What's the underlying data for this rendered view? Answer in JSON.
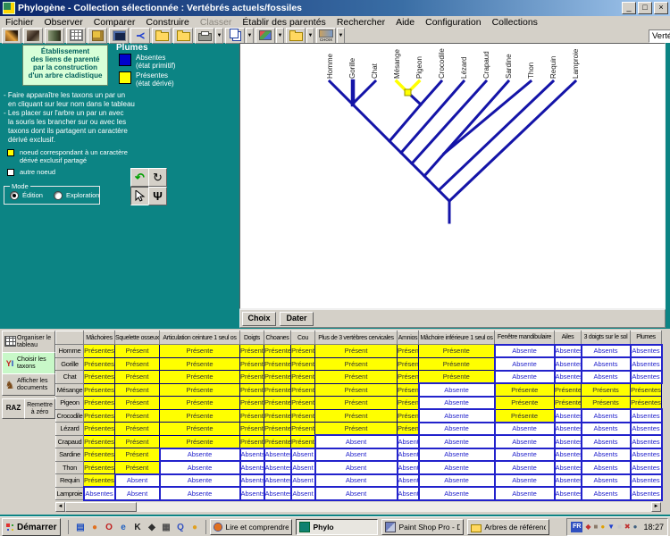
{
  "window": {
    "title": "Phylogène - Collection sélectionnée : Vertébrés actuels/fossiles",
    "controls": [
      "_",
      "□",
      "×"
    ]
  },
  "menu": {
    "items": [
      {
        "label": "Fichier"
      },
      {
        "label": "Observer"
      },
      {
        "label": "Comparer"
      },
      {
        "label": "Construire"
      },
      {
        "label": "Classer",
        "disabled": true
      },
      {
        "label": "Établir des parentés"
      },
      {
        "label": "Rechercher"
      },
      {
        "label": "Aide"
      },
      {
        "label": "Configuration"
      },
      {
        "label": "Collections"
      }
    ]
  },
  "toolbar": {
    "buttons": [
      {
        "name": "butterflies-photo",
        "kind": "photo1"
      },
      {
        "name": "vertebrates-photo",
        "kind": "photo2"
      },
      {
        "name": "animals-photo",
        "kind": "photo3"
      },
      {
        "name": "table-grid",
        "kind": "grid"
      },
      {
        "name": "build-cube",
        "kind": "cube"
      },
      {
        "name": "screen-view",
        "kind": "screen"
      },
      {
        "name": "cladogram",
        "kind": "tree"
      },
      {
        "name": "folder-yellow",
        "kind": "folderb"
      },
      {
        "name": "folder-open",
        "kind": "folder"
      },
      {
        "name": "print",
        "kind": "printer",
        "dropdown": true
      },
      {
        "name": "copy",
        "kind": "copy",
        "dropdown": true
      },
      {
        "name": "export-images",
        "kind": "pictures",
        "dropdown": true
      },
      {
        "name": "open-collection-folder",
        "kind": "folder2",
        "dropdown": true
      },
      {
        "name": "choix",
        "kind": "choix",
        "dropdown": true,
        "label": "CHOIX"
      }
    ],
    "collection_combo": {
      "value": "Vertébrés actuels"
    },
    "ok_label": "OK"
  },
  "left_panel": {
    "info_box_lines": [
      "Établissement",
      "des liens de parenté",
      "par la construction",
      "d'un arbre cladistique"
    ],
    "legend": {
      "title": "Plumes",
      "items": [
        {
          "label": "Absentes",
          "sublabel": "(état primitif)",
          "color": "#0000cc"
        },
        {
          "label": "Présentes",
          "sublabel": "(état dérivé)",
          "color": "#ffff00"
        }
      ]
    },
    "instructions": [
      "- Faire apparaître les taxons un par un",
      "en cliquant sur  leur nom dans le tableau",
      "- Les placer sur l'arbre un par un avec",
      "la souris les brancher sur ou avec les",
      "taxons dont ils partagent un caractère",
      "dérivé exclusif."
    ],
    "node_key": [
      {
        "color": "#ffff00",
        "lines": [
          "noeud correspondant à un caractère",
          "dérivé exclusif partagé"
        ]
      },
      {
        "color": "#ffffff",
        "lines": [
          "autre noeud"
        ]
      }
    ],
    "mode": {
      "label": "Mode",
      "options": [
        {
          "label": "Édition",
          "selected": true
        },
        {
          "label": "Exploration",
          "selected": false
        }
      ]
    },
    "tools": [
      {
        "name": "undo-tool",
        "glyph": "↶"
      },
      {
        "name": "rotate-tool",
        "glyph": "↻"
      },
      {
        "name": "pointer-tool",
        "glyph": "cursor"
      },
      {
        "name": "branch-tool",
        "glyph": "Ψ"
      }
    ]
  },
  "tree": {
    "taxa": [
      "Homme",
      "Gorille",
      "Chat",
      "Mésange",
      "Pigeon",
      "Crocodile",
      "Lézard",
      "Crapaud",
      "Sardine",
      "Thon",
      "Requin",
      "Lamproie"
    ],
    "buttons": [
      "Choix",
      "Dater"
    ],
    "branch_color": "#1414a8",
    "derived_color": "#ffff00"
  },
  "table": {
    "columns": [
      "Mâchoires",
      "Squelette osseux",
      "Articulation ceinture 1 seul os",
      "Doigts",
      "Choanes",
      "Cou",
      "Plus de 3 vertèbres cervicales",
      "Amnios",
      "Mâchoire inférieure 1 seul os",
      "Fenêtre mandibulaire",
      "Ailes",
      "3 doigts sur le sol",
      "Plumes"
    ],
    "rows": [
      {
        "name": "Homme",
        "values": [
          "Présentes",
          "Présent",
          "Présente",
          "Présents",
          "Présentes",
          "Présent",
          "Présent",
          "Présent",
          "Présente",
          "Absente",
          "Absentes",
          "Absents",
          "Absentes"
        ]
      },
      {
        "name": "Gorille",
        "values": [
          "Présentes",
          "Présent",
          "Présente",
          "Présents",
          "Présentes",
          "Présent",
          "Présent",
          "Présent",
          "Présente",
          "Absente",
          "Absentes",
          "Absents",
          "Absentes"
        ]
      },
      {
        "name": "Chat",
        "values": [
          "Présentes",
          "Présent",
          "Présente",
          "Présents",
          "Présentes",
          "Présent",
          "Présent",
          "Présent",
          "Présente",
          "Absente",
          "Absentes",
          "Absents",
          "Absentes"
        ]
      },
      {
        "name": "Mésange",
        "values": [
          "Présentes",
          "Présent",
          "Présente",
          "Présents",
          "Présentes",
          "Présent",
          "Présent",
          "Présent",
          "Absente",
          "Présente",
          "Présentes",
          "Présents",
          "Présentes"
        ]
      },
      {
        "name": "Pigeon",
        "values": [
          "Présentes",
          "Présent",
          "Présente",
          "Présents",
          "Présentes",
          "Présent",
          "Présent",
          "Présent",
          "Absente",
          "Présente",
          "Présentes",
          "Présents",
          "Présentes"
        ]
      },
      {
        "name": "Crocodile",
        "values": [
          "Présentes",
          "Présent",
          "Présente",
          "Présents",
          "Présentes",
          "Présent",
          "Présent",
          "Présent",
          "Absente",
          "Présente",
          "Absentes",
          "Absents",
          "Absentes"
        ]
      },
      {
        "name": "Lézard",
        "values": [
          "Présentes",
          "Présent",
          "Présente",
          "Présents",
          "Présentes",
          "Présent",
          "Présent",
          "Présent",
          "Absente",
          "Absente",
          "Absentes",
          "Absents",
          "Absentes"
        ]
      },
      {
        "name": "Crapaud",
        "values": [
          "Présentes",
          "Présent",
          "Présente",
          "Présents",
          "Présentes",
          "Présent",
          "Absent",
          "Absent",
          "Absente",
          "Absente",
          "Absentes",
          "Absents",
          "Absentes"
        ]
      },
      {
        "name": "Sardine",
        "values": [
          "Présentes",
          "Présent",
          "Absente",
          "Absents",
          "Absentes",
          "Absent",
          "Absent",
          "Absent",
          "Absente",
          "Absente",
          "Absentes",
          "Absents",
          "Absentes"
        ]
      },
      {
        "name": "Thon",
        "values": [
          "Présentes",
          "Présent",
          "Absente",
          "Absents",
          "Absentes",
          "Absent",
          "Absent",
          "Absent",
          "Absente",
          "Absente",
          "Absentes",
          "Absents",
          "Absentes"
        ]
      },
      {
        "name": "Requin",
        "values": [
          "Présentes",
          "Absent",
          "Absente",
          "Absents",
          "Absentes",
          "Absent",
          "Absent",
          "Absent",
          "Absente",
          "Absente",
          "Absentes",
          "Absents",
          "Absentes"
        ]
      },
      {
        "name": "Lamproie",
        "values": [
          "Absentes",
          "Absent",
          "Absente",
          "Absents",
          "Absentes",
          "Absent",
          "Absent",
          "Absent",
          "Absente",
          "Absente",
          "Absentes",
          "Absents",
          "Absentes"
        ]
      }
    ],
    "present_color": "#ffff00",
    "absent_color": "#ffffff"
  },
  "table_sidebar": {
    "buttons": [
      {
        "label": "Organiser le tableau",
        "icon": "grid"
      },
      {
        "label": "Choisir les taxons",
        "icon": "taxa",
        "active": true
      },
      {
        "label": "Afficher les documents",
        "icon": "horse"
      }
    ],
    "raz": {
      "label": "RAZ",
      "caption": "Remettre à zéro"
    }
  },
  "taskbar": {
    "start_label": "Démarrer",
    "quick_launch": [
      {
        "name": "show-desktop-icon",
        "glyph": "▤",
        "color": "#2050c0"
      },
      {
        "name": "firefox-icon",
        "glyph": "●",
        "color": "#e07020"
      },
      {
        "name": "opera-icon",
        "glyph": "O",
        "color": "#c02020"
      },
      {
        "name": "internet-explorer-icon",
        "glyph": "e",
        "color": "#2060c0"
      },
      {
        "name": "k-app-icon",
        "glyph": "K",
        "color": "#202020"
      },
      {
        "name": "kite-app-icon",
        "glyph": "◆",
        "color": "#303030"
      },
      {
        "name": "grid-app-icon",
        "glyph": "▦",
        "color": "#505050"
      },
      {
        "name": "quicktime-icon",
        "glyph": "Q",
        "color": "#3050c0"
      },
      {
        "name": "media-player-icon",
        "glyph": "●",
        "color": "#e0a020"
      }
    ],
    "tasks": [
      {
        "label": "Lire et comprendre les ar...",
        "icon": "firefox"
      },
      {
        "label": "Phylo",
        "icon": "phylo",
        "active": true
      },
      {
        "label": "Paint Shop Pro - Diapside...",
        "icon": "psp"
      },
      {
        "label": "Arbres de référence",
        "icon": "folder"
      }
    ],
    "tray": {
      "language": "FR",
      "icons": [
        {
          "name": "tray-tool-icon",
          "glyph": "◆",
          "color": "#c03030"
        },
        {
          "name": "tray-device-icon",
          "glyph": "■",
          "color": "#8a7a6a"
        },
        {
          "name": "tray-alert-icon",
          "glyph": "●",
          "color": "#e0a000"
        },
        {
          "name": "tray-download-icon",
          "glyph": "▼",
          "color": "#2040d0"
        },
        {
          "name": "tray-display-icon",
          "glyph": "■",
          "color": "#c8c8c8"
        },
        {
          "name": "tray-mute-icon",
          "glyph": "✖",
          "color": "#c03030"
        },
        {
          "name": "tray-network-icon",
          "glyph": "●",
          "color": "#406080"
        }
      ],
      "clock": "18:27"
    }
  }
}
